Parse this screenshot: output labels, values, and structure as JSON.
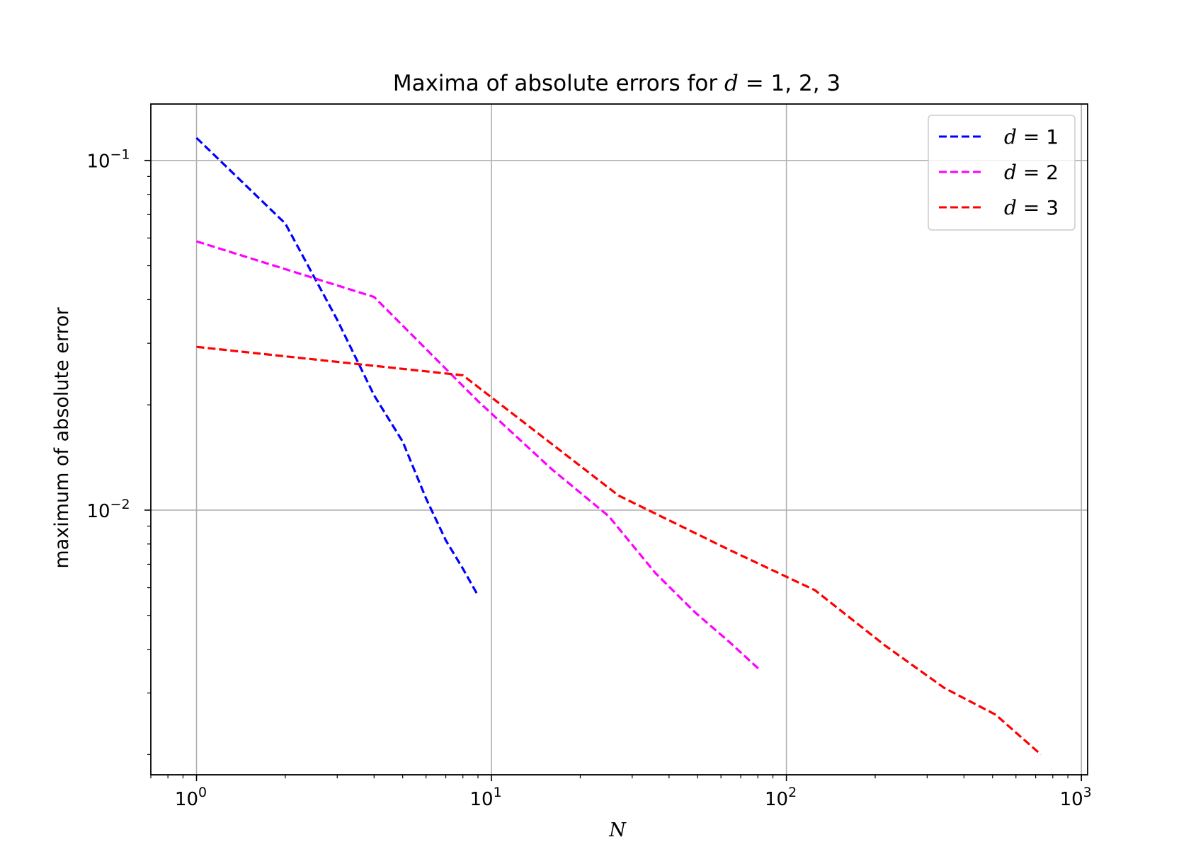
{
  "chart_data": {
    "type": "line",
    "title": {
      "prefix": "Maxima of absolute errors for ",
      "var": "d",
      "suffix": " = 1, 2, 3"
    },
    "xlabel": "N",
    "ylabel": "maximum of absolute error",
    "xscale": "log",
    "yscale": "log",
    "xlim": [
      0.7,
      1050
    ],
    "ylim": [
      0.00175,
      0.145
    ],
    "grid": true,
    "legend_position": "top-right",
    "x_ticks": [
      {
        "value": 1,
        "base": "10",
        "exp": "0"
      },
      {
        "value": 10,
        "base": "10",
        "exp": "1"
      },
      {
        "value": 100,
        "base": "10",
        "exp": "2"
      },
      {
        "value": 1000,
        "base": "10",
        "exp": "3"
      }
    ],
    "y_ticks": [
      {
        "value": 0.01,
        "base": "10",
        "exp": "−2"
      },
      {
        "value": 0.1,
        "base": "10",
        "exp": "−1"
      }
    ],
    "series": [
      {
        "name": "d = 1",
        "legend_var": "d",
        "legend_rest": " = 1",
        "color": "#0000ff",
        "dash": "dashed",
        "x": [
          1,
          2,
          3,
          4,
          5,
          6,
          7,
          8,
          9
        ],
        "y": [
          0.116,
          0.066,
          0.035,
          0.0213,
          0.0157,
          0.0108,
          0.0082,
          0.0068,
          0.0057
        ]
      },
      {
        "name": "d = 2",
        "legend_var": "d",
        "legend_rest": " = 2",
        "color": "#ff00ff",
        "dash": "dashed",
        "x": [
          1,
          4,
          9,
          16,
          25,
          36,
          49,
          64,
          81
        ],
        "y": [
          0.0587,
          0.0407,
          0.0205,
          0.0131,
          0.0096,
          0.0066,
          0.0051,
          0.0042,
          0.0035
        ]
      },
      {
        "name": "d = 3",
        "legend_var": "d",
        "legend_rest": " = 3",
        "color": "#ff0000",
        "dash": "dashed",
        "x": [
          1,
          8,
          27,
          64,
          125,
          216,
          343,
          512,
          729
        ],
        "y": [
          0.0293,
          0.0243,
          0.011,
          0.0077,
          0.0059,
          0.0041,
          0.0031,
          0.0026,
          0.002
        ]
      }
    ]
  }
}
